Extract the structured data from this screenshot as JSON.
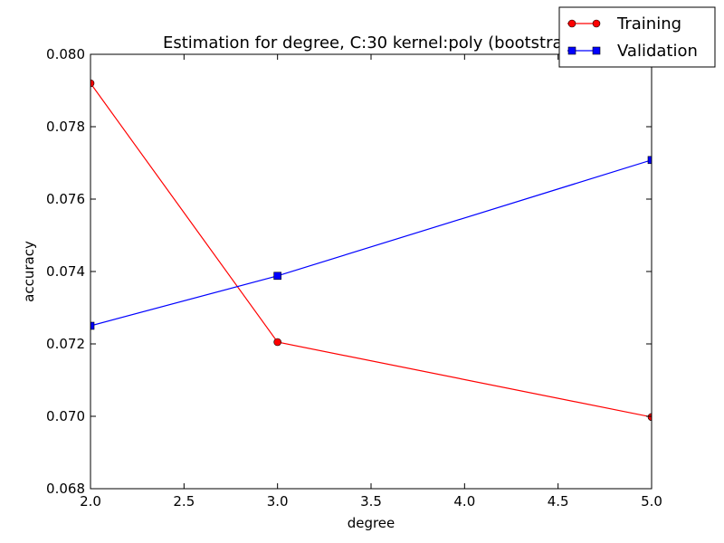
{
  "chart_data": {
    "type": "line",
    "title": "Estimation for degree, C:30 kernel:poly (bootstrap)",
    "xlabel": "degree",
    "ylabel": "accuracy",
    "xlim": [
      2.0,
      5.0
    ],
    "ylim": [
      0.068,
      0.08
    ],
    "xticks": [
      2.0,
      2.5,
      3.0,
      3.5,
      4.0,
      4.5,
      5.0
    ],
    "xtick_labels": [
      "2.0",
      "2.5",
      "3.0",
      "3.5",
      "4.0",
      "4.5",
      "5.0"
    ],
    "yticks": [
      0.068,
      0.07,
      0.072,
      0.074,
      0.076,
      0.078,
      0.08
    ],
    "ytick_labels": [
      "0.068",
      "0.070",
      "0.072",
      "0.074",
      "0.076",
      "0.078",
      "0.080"
    ],
    "grid": false,
    "legend_position": "top-right",
    "x": [
      2,
      3,
      5
    ],
    "series": [
      {
        "name": "Training",
        "values": [
          0.0792,
          0.07205,
          0.06998
        ],
        "color": "#ff0000",
        "marker": "circle"
      },
      {
        "name": "Validation",
        "values": [
          0.0725,
          0.07388,
          0.07708
        ],
        "color": "#0000ff",
        "marker": "square"
      }
    ]
  }
}
